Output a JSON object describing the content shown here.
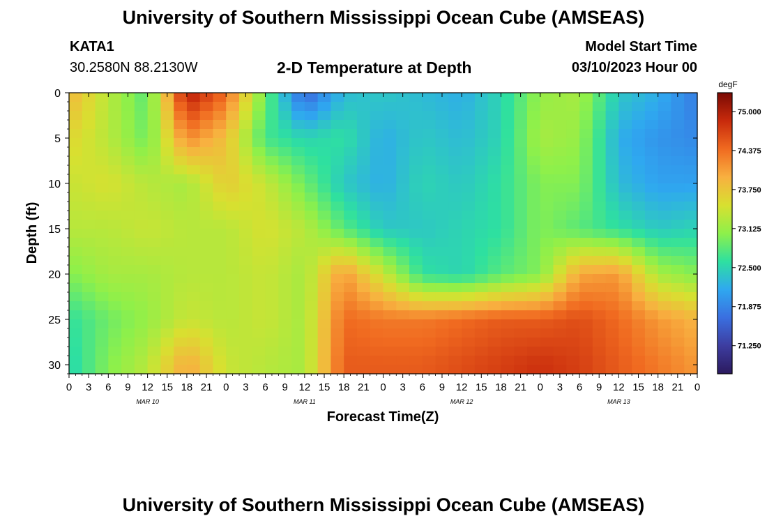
{
  "header": {
    "title": "University of Southern Mississippi Ocean Cube (AMSEAS)",
    "station": "KATA1",
    "coordinates": "30.2580N  88.2130W",
    "subtitle": "2-D Temperature at Depth",
    "model_start_label": "Model Start Time",
    "model_start_value": "03/10/2023 Hour 00"
  },
  "footer": {
    "title": "University of Southern Mississippi Ocean Cube (AMSEAS)"
  },
  "chart_data": {
    "type": "heatmap",
    "title": "2-D Temperature at Depth",
    "xlabel": "Forecast Time(Z)",
    "ylabel": "Depth (ft)",
    "x_ticks": [
      "0",
      "3",
      "6",
      "9",
      "12",
      "15",
      "18",
      "21",
      "0",
      "3",
      "6",
      "9",
      "12",
      "15",
      "18",
      "21",
      "0",
      "3",
      "6",
      "9",
      "12",
      "15",
      "18",
      "21",
      "0",
      "3",
      "6",
      "9",
      "12",
      "15",
      "18",
      "21",
      "0"
    ],
    "x_hours": [
      0,
      96
    ],
    "day_labels": [
      {
        "label": "MAR 10",
        "hour": 12
      },
      {
        "label": "MAR 11",
        "hour": 36
      },
      {
        "label": "MAR 12",
        "hour": 60
      },
      {
        "label": "MAR 13",
        "hour": 84
      }
    ],
    "y_ticks": [
      0,
      5,
      10,
      15,
      20,
      25,
      30
    ],
    "ylim": [
      0,
      31
    ],
    "colorbar": {
      "unit": "degF",
      "ticks": [
        "75.000",
        "74.375",
        "73.750",
        "73.125",
        "72.500",
        "71.875",
        "71.250"
      ],
      "range": [
        70.8,
        75.3
      ],
      "colors": [
        "#2b1a5e",
        "#3d3da0",
        "#3a6fe0",
        "#2fa8f0",
        "#2ee0a0",
        "#8ef04a",
        "#d8e030",
        "#f8b040",
        "#f06a20",
        "#c82a0c",
        "#7a0a04"
      ]
    },
    "times": [
      0,
      6,
      12,
      18,
      24,
      30,
      36,
      42,
      48,
      54,
      60,
      66,
      72,
      78,
      84,
      90,
      96
    ],
    "depths": [
      0,
      5,
      10,
      15,
      20,
      25,
      30
    ],
    "values": [
      [
        73.9,
        73.3,
        72.8,
        75.0,
        74.4,
        72.9,
        71.6,
        72.3,
        72.4,
        72.3,
        72.2,
        72.5,
        73.1,
        73.2,
        72.4,
        72.2,
        71.8
      ],
      [
        73.6,
        73.3,
        72.9,
        74.2,
        73.8,
        72.7,
        72.5,
        72.6,
        72.2,
        72.4,
        72.3,
        72.5,
        73.2,
        73.1,
        72.2,
        72.0,
        71.9
      ],
      [
        73.4,
        73.5,
        73.3,
        73.2,
        73.7,
        73.4,
        72.9,
        72.4,
        72.2,
        72.5,
        72.4,
        72.6,
        73.0,
        73.0,
        72.3,
        72.1,
        72.1
      ],
      [
        73.3,
        73.3,
        73.4,
        73.3,
        73.3,
        73.5,
        73.3,
        72.8,
        72.4,
        72.4,
        72.5,
        72.6,
        73.0,
        72.8,
        72.6,
        72.4,
        72.5
      ],
      [
        73.0,
        73.2,
        73.2,
        73.3,
        73.3,
        73.4,
        73.2,
        74.1,
        73.4,
        72.6,
        72.5,
        72.8,
        73.0,
        74.0,
        74.1,
        73.2,
        73.0
      ],
      [
        72.6,
        72.9,
        73.1,
        73.4,
        73.3,
        73.4,
        73.2,
        74.4,
        74.3,
        74.3,
        74.4,
        74.5,
        74.5,
        74.6,
        74.4,
        74.1,
        73.9
      ],
      [
        72.5,
        73.0,
        73.3,
        74.0,
        73.4,
        73.3,
        73.2,
        74.5,
        74.5,
        74.5,
        74.6,
        74.7,
        74.8,
        74.7,
        74.5,
        74.3,
        74.1
      ]
    ]
  }
}
